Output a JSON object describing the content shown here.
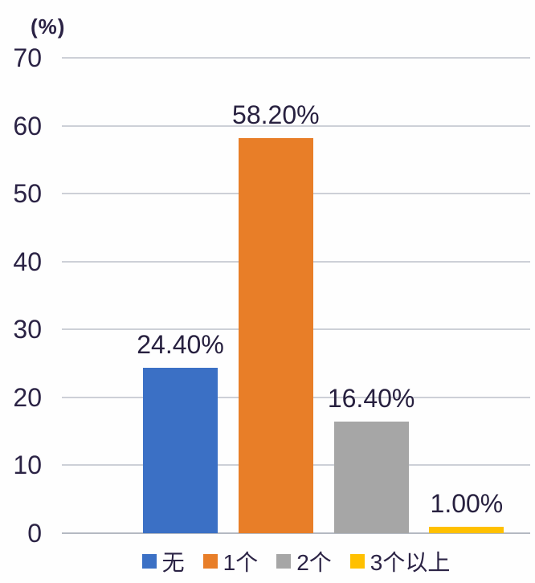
{
  "colors": {
    "text": "#2b2345",
    "gridline": "#cdd0d7",
    "baseline": "#b4b9c2",
    "background": "#fefefe"
  },
  "chart_data": {
    "type": "bar",
    "title": "(%)",
    "ylabel": "(%)",
    "xlabel": "",
    "categories": [
      "无",
      "1个",
      "2个",
      "3个以上"
    ],
    "values": [
      24.4,
      58.2,
      16.4,
      1.0
    ],
    "data_labels": [
      "24.40%",
      "58.20%",
      "16.40%",
      "1.00%"
    ],
    "bar_colors": [
      "#3b70c5",
      "#e87e28",
      "#a6a6a6",
      "#ffc000"
    ],
    "ylim": [
      0,
      70
    ],
    "yticks": [
      0,
      10,
      20,
      30,
      40,
      50,
      60,
      70
    ],
    "grid": true,
    "legend_position": "bottom"
  }
}
